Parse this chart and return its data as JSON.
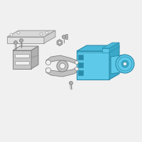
{
  "bg_color": "#f0f0f0",
  "hyd_face": "#5ec9e8",
  "hyd_top": "#4ab8d8",
  "hyd_side": "#3aa8c8",
  "hyd_edge": "#2a8aaa",
  "bracket_face": "#c0c0c0",
  "bracket_edge": "#808080",
  "plate_face": "#d8d8d8",
  "plate_edge": "#909090",
  "screw_face": "#b0b0b0",
  "screw_edge": "#707070",
  "white": "#ffffff",
  "figsize": [
    2.0,
    2.0
  ],
  "dpi": 100
}
